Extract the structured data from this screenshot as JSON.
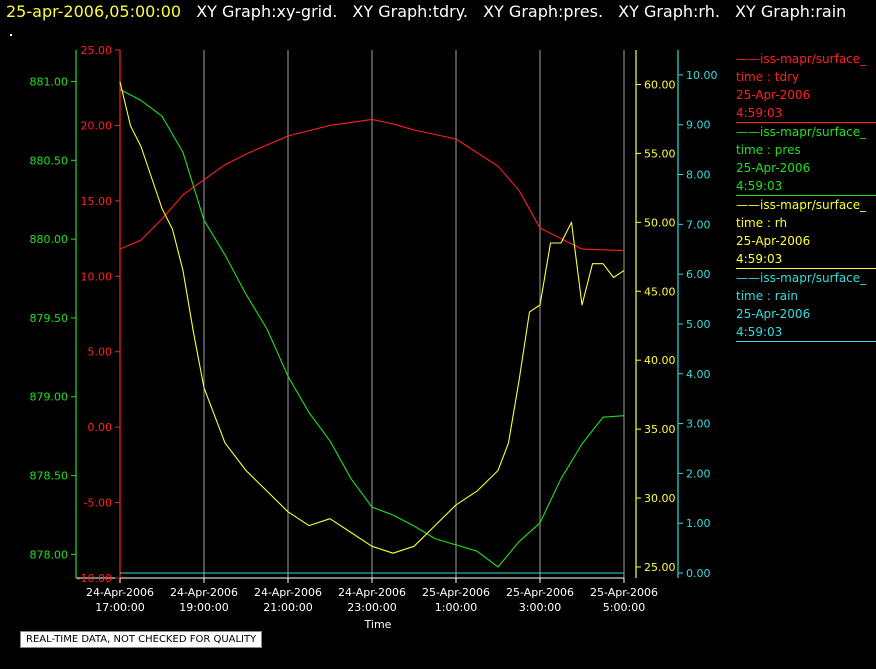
{
  "header": {
    "timestamp": "25-apr-2006,05:00:00",
    "titles": [
      "XY Graph:xy-grid.",
      "XY Graph:tdry.",
      "XY Graph:pres.",
      "XY Graph:rh.",
      "XY Graph:rain"
    ]
  },
  "colors": {
    "tdry": "#ff2020",
    "pres": "#20e020",
    "rh": "#ffff33",
    "rain": "#33dddd",
    "grid": "#c8c8c8",
    "text": "#ffffff"
  },
  "legend": [
    {
      "source": "——iss-mapr/surface_",
      "var": "time : tdry",
      "date": "25-Apr-2006",
      "time": "4:59:03",
      "color": "#ff2020"
    },
    {
      "source": "——iss-mapr/surface_",
      "var": "time : pres",
      "date": "25-Apr-2006",
      "time": "4:59:03",
      "color": "#20e020"
    },
    {
      "source": "——iss-mapr/surface_",
      "var": "time : rh",
      "date": "25-Apr-2006",
      "time": "4:59:03",
      "color": "#ffff33"
    },
    {
      "source": "——iss-mapr/surface_",
      "var": "time : rain",
      "date": "25-Apr-2006",
      "time": "4:59:03",
      "color": "#33dddd"
    }
  ],
  "disclaimer": "REAL-TIME DATA, NOT CHECKED FOR QUALITY",
  "chart_data": {
    "type": "line",
    "xlabel": "Time",
    "x_ticks": [
      {
        "d": "24-Apr-2006",
        "t": "17:00:00"
      },
      {
        "d": "24-Apr-2006",
        "t": "19:00:00"
      },
      {
        "d": "24-Apr-2006",
        "t": "21:00:00"
      },
      {
        "d": "24-Apr-2006",
        "t": "23:00:00"
      },
      {
        "d": "25-Apr-2006",
        "t": "1:00:00"
      },
      {
        "d": "25-Apr-2006",
        "t": "3:00:00"
      },
      {
        "d": "25-Apr-2006",
        "t": "5:00:00"
      }
    ],
    "xlim": [
      "24-Apr-2006 17:00:00",
      "25-Apr-2006 05:00:00"
    ],
    "grid": true,
    "axes": {
      "pres": {
        "ylim": [
          877.85,
          881.2
        ],
        "ticks": [
          "881.00",
          "880.50",
          "880.00",
          "879.50",
          "879.00",
          "878.50",
          "878.00"
        ]
      },
      "tdry": {
        "ylim": [
          -10,
          25
        ],
        "ticks": [
          "25.00",
          "20.00",
          "15.00",
          "10.00",
          "5.00",
          "0.00",
          "-5.00",
          "-10.00"
        ]
      },
      "rh": {
        "ylim": [
          24.2,
          62.5
        ],
        "ticks": [
          "60.00",
          "55.00",
          "50.00",
          "45.00",
          "40.00",
          "35.00",
          "30.00",
          "25.00"
        ]
      },
      "rain": {
        "ylim": [
          -0.1,
          10.5
        ],
        "ticks": [
          "10.00",
          "9.00",
          "8.00",
          "7.00",
          "6.00",
          "5.00",
          "4.00",
          "3.00",
          "2.00",
          "1.00",
          "0.00"
        ]
      }
    },
    "series": [
      {
        "name": "tdry",
        "axis": "tdry",
        "x": [
          "24-Apr-2006 17:00",
          "24-Apr-2006 17:30",
          "24-Apr-2006 18:00",
          "24-Apr-2006 18:30",
          "24-Apr-2006 19:00",
          "24-Apr-2006 19:30",
          "24-Apr-2006 20:00",
          "24-Apr-2006 20:30",
          "24-Apr-2006 21:00",
          "24-Apr-2006 22:00",
          "24-Apr-2006 23:00",
          "24-Apr-2006 23:30",
          "25-Apr-2006 00:00",
          "25-Apr-2006 01:00",
          "25-Apr-2006 02:00",
          "25-Apr-2006 02:30",
          "25-Apr-2006 03:00",
          "25-Apr-2006 03:30",
          "25-Apr-2006 04:00",
          "25-Apr-2006 05:00"
        ],
        "y": [
          11.8,
          12.4,
          13.8,
          15.4,
          16.4,
          17.4,
          18.1,
          18.7,
          19.3,
          20.0,
          20.4,
          20.1,
          19.7,
          19.1,
          17.3,
          15.7,
          13.2,
          12.5,
          11.8,
          11.7
        ]
      },
      {
        "name": "pres",
        "axis": "pres",
        "x": [
          "24-Apr-2006 17:00",
          "24-Apr-2006 17:30",
          "24-Apr-2006 18:00",
          "24-Apr-2006 18:30",
          "24-Apr-2006 19:00",
          "24-Apr-2006 19:30",
          "24-Apr-2006 20:00",
          "24-Apr-2006 20:30",
          "24-Apr-2006 21:00",
          "24-Apr-2006 21:30",
          "24-Apr-2006 22:00",
          "24-Apr-2006 22:30",
          "24-Apr-2006 23:00",
          "24-Apr-2006 23:30",
          "25-Apr-2006 00:00",
          "25-Apr-2006 00:30",
          "25-Apr-2006 01:00",
          "25-Apr-2006 01:30",
          "25-Apr-2006 02:00",
          "25-Apr-2006 02:30",
          "25-Apr-2006 03:00",
          "25-Apr-2006 03:30",
          "25-Apr-2006 04:00",
          "25-Apr-2006 04:30",
          "25-Apr-2006 05:00"
        ],
        "y": [
          880.95,
          880.88,
          880.78,
          880.55,
          880.12,
          879.9,
          879.65,
          879.43,
          879.13,
          878.9,
          878.72,
          878.48,
          878.3,
          878.25,
          878.18,
          878.1,
          878.06,
          878.02,
          877.92,
          878.08,
          878.2,
          878.48,
          878.7,
          878.87,
          878.88
        ]
      },
      {
        "name": "rh",
        "axis": "rh",
        "x": [
          "24-Apr-2006 17:00",
          "24-Apr-2006 17:15",
          "24-Apr-2006 17:30",
          "24-Apr-2006 18:00",
          "24-Apr-2006 18:15",
          "24-Apr-2006 18:30",
          "24-Apr-2006 18:45",
          "24-Apr-2006 19:00",
          "24-Apr-2006 19:30",
          "24-Apr-2006 20:00",
          "24-Apr-2006 20:30",
          "24-Apr-2006 21:00",
          "24-Apr-2006 21:30",
          "24-Apr-2006 22:00",
          "24-Apr-2006 22:30",
          "24-Apr-2006 23:00",
          "24-Apr-2006 23:30",
          "25-Apr-2006 00:00",
          "25-Apr-2006 00:30",
          "25-Apr-2006 01:00",
          "25-Apr-2006 01:30",
          "25-Apr-2006 02:00",
          "25-Apr-2006 02:15",
          "25-Apr-2006 02:30",
          "25-Apr-2006 02:45",
          "25-Apr-2006 03:00",
          "25-Apr-2006 03:15",
          "25-Apr-2006 03:30",
          "25-Apr-2006 03:45",
          "25-Apr-2006 04:00",
          "25-Apr-2006 04:15",
          "25-Apr-2006 04:30",
          "25-Apr-2006 04:45",
          "25-Apr-2006 05:00"
        ],
        "y": [
          60.2,
          57.0,
          55.5,
          51.0,
          49.5,
          46.5,
          42.0,
          38.0,
          34.0,
          32.0,
          30.5,
          29.0,
          28.0,
          28.5,
          27.5,
          26.5,
          26.0,
          26.5,
          28.0,
          29.5,
          30.5,
          32.0,
          34.0,
          38.5,
          43.5,
          44.0,
          48.5,
          48.5,
          50.0,
          44.0,
          47.0,
          47.0,
          46.0,
          46.5
        ]
      },
      {
        "name": "rain",
        "axis": "rain",
        "x": [
          "24-Apr-2006 17:00",
          "25-Apr-2006 05:00"
        ],
        "y": [
          0.0,
          0.0
        ]
      }
    ]
  }
}
